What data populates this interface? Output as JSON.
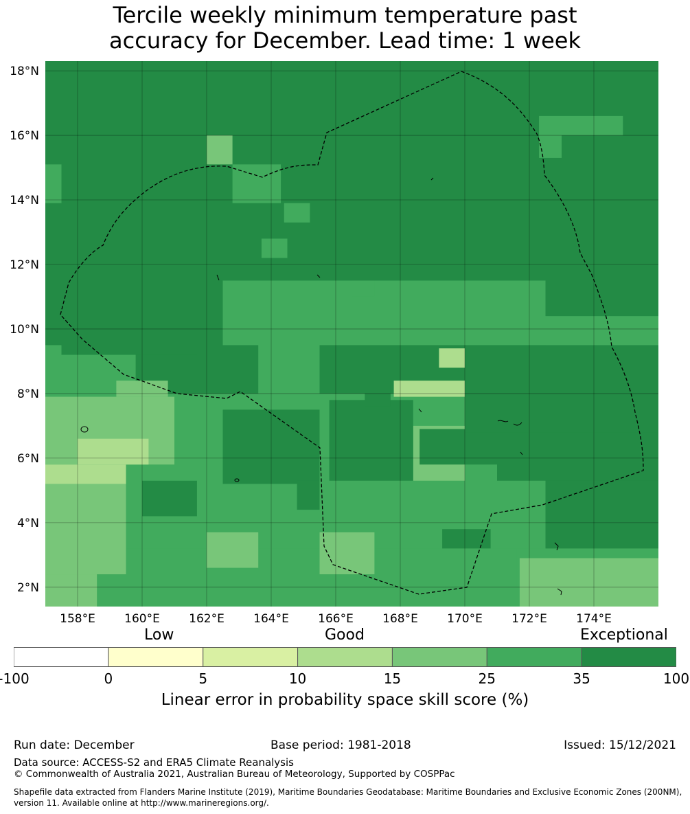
{
  "title_line1": "Tercile weekly minimum temperature past",
  "title_line2": "accuracy for December. Lead time: 1 week",
  "map": {
    "lon_range": [
      157.0,
      176.0
    ],
    "lat_range": [
      1.4,
      18.3
    ],
    "lat_ticks": [
      "18°N",
      "16°N",
      "14°N",
      "12°N",
      "10°N",
      "8°N",
      "6°N",
      "4°N",
      "2°N"
    ],
    "lon_ticks": [
      "158°E",
      "160°E",
      "162°E",
      "164°E",
      "166°E",
      "168°E",
      "170°E",
      "172°E",
      "174°E"
    ],
    "grid_note_colors": {
      "exceptional": "#238b45",
      "c25_35": "#41ab5d",
      "c15_25": "#78c679",
      "c10_15": "#addd8e",
      "c5_10": "#d9f0a3",
      "c0_5": "#ffffcc"
    },
    "boundary_color": "#000000"
  },
  "colorbar": {
    "category_labels": [
      "Low",
      "Good",
      "Exceptional"
    ],
    "ticks": [
      "-100",
      "0",
      "5",
      "10",
      "15",
      "25",
      "35",
      "100"
    ],
    "colors": [
      "#ffffff",
      "#ffffcc",
      "#d9f0a3",
      "#addd8e",
      "#78c679",
      "#41ab5d",
      "#238b45"
    ],
    "label": "Linear error in probability space skill score (%)"
  },
  "footer": {
    "run_date": "Run date: December",
    "base_period": "Base period: 1981-2018",
    "issued": "Issued: 15/12/2021",
    "data_source": "Data source: ACCESS-S2 and ERA5 Climate Reanalysis",
    "copyright": "© Commonwealth of Australia 2021, Australian Bureau of Meteorology, Supported by COSPPac",
    "shapefile_line1": "Shapefile data extracted from Flanders Marine Institute (2019), Maritime Boundaries Geodatabase: Maritime Boundaries and Exclusive Economic Zones (200NM),",
    "shapefile_line2": "version 11. Available online at http://www.marineregions.org/."
  }
}
